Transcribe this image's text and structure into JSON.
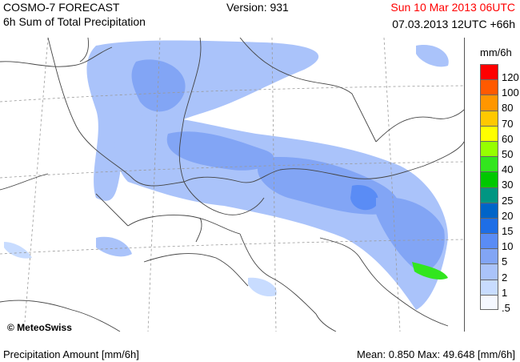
{
  "header": {
    "title": "COSMO-7 FORECAST",
    "subtitle": "6h Sum of Total Precipitation",
    "version": "Version: 931",
    "valid_time": "Sun 10 Mar 2013 06UTC",
    "run_info": "07.03.2013 12UTC +66h"
  },
  "map": {
    "copyright": "© MeteoSwiss"
  },
  "legend": {
    "unit": "mm/6h",
    "levels": [
      {
        "label": "120",
        "color": "#ff0000"
      },
      {
        "label": "100",
        "color": "#ff5a00"
      },
      {
        "label": "80",
        "color": "#ff9600"
      },
      {
        "label": "70",
        "color": "#ffc800"
      },
      {
        "label": "60",
        "color": "#ffff00"
      },
      {
        "label": "50",
        "color": "#96ff00"
      },
      {
        "label": "40",
        "color": "#32e61e"
      },
      {
        "label": "30",
        "color": "#00c800"
      },
      {
        "label": "25",
        "color": "#009682"
      },
      {
        "label": "20",
        "color": "#0064c8"
      },
      {
        "label": "15",
        "color": "#1e6ee6"
      },
      {
        "label": "10",
        "color": "#5a8cf5"
      },
      {
        "label": "5",
        "color": "#82a5f5"
      },
      {
        "label": "2",
        "color": "#aac3fa"
      },
      {
        "label": "1",
        "color": "#c8dcff"
      },
      {
        "label": ".5",
        "color": "#f5f8ff"
      }
    ]
  },
  "footer": {
    "left": "Precipitation Amount [mm/6h]",
    "right": "Mean:  0.850 Max:  49.648 [mm/6h]"
  }
}
